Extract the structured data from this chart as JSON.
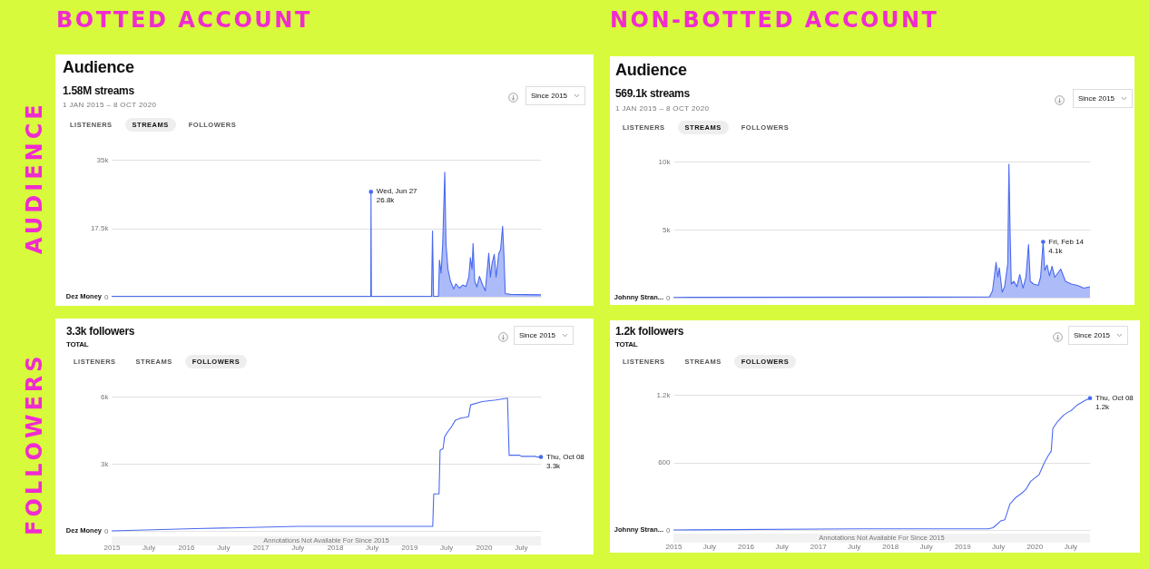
{
  "chart_data": [
    {
      "type": "area",
      "title": "Audience",
      "subtitle": "1.58M streams",
      "annotations": [
        "BOTTED ACCOUNT",
        "AUDIENCE",
        "1 JAN 2015 – 8 OCT 2020",
        "LISTENERS",
        "STREAMS",
        "FOLLOWERS",
        "Since 2015",
        {
          "text": "Wed, Jun 27\n26.8k",
          "x": "2018-06-27",
          "y": 26800
        }
      ],
      "xlim": [
        "2015-01-01",
        "2020-10-08"
      ],
      "ylim": [
        0,
        35000
      ],
      "yticks": [
        {
          "value": 0,
          "label": "0"
        },
        {
          "value": 17500,
          "label": "17.5k"
        },
        {
          "value": 35000,
          "label": "35k"
        }
      ],
      "tick_labels": "y",
      "grid": "y",
      "x": [
        "2015-01-01",
        "2018-05-15",
        "2018-06-26",
        "2018-06-27",
        "2018-06-29",
        "2019-04-20",
        "2019-04-25",
        "2019-04-30",
        "2019-05-24",
        "2019-05-29",
        "2019-06-06",
        "2019-06-14",
        "2019-06-24",
        "2019-06-30",
        "2019-07-10",
        "2019-07-22",
        "2019-08-07",
        "2019-08-18",
        "2019-09-04",
        "2019-09-20",
        "2019-10-06",
        "2019-10-20",
        "2019-10-28",
        "2019-11-05",
        "2019-11-10",
        "2019-11-18",
        "2019-11-29",
        "2019-12-11",
        "2019-12-27",
        "2020-01-09",
        "2020-01-26",
        "2020-02-03",
        "2020-02-11",
        "2020-02-22",
        "2020-03-02",
        "2020-03-15",
        "2020-03-24",
        "2020-04-03",
        "2020-04-10",
        "2020-04-16",
        "2020-05-11",
        "2020-10-08"
      ],
      "series": [
        {
          "name": "Dez Money",
          "color": "#4a6af0",
          "values": [
            100,
            100,
            100,
            26800,
            100,
            100,
            16800,
            100,
            100,
            9400,
            6000,
            13500,
            31800,
            13500,
            7000,
            4000,
            2000,
            3300,
            2200,
            3000,
            2600,
            5000,
            10000,
            7000,
            13600,
            4000,
            2500,
            5200,
            3000,
            1500,
            11100,
            5000,
            8500,
            10800,
            5000,
            11000,
            12000,
            18000,
            10000,
            800,
            600,
            500
          ]
        }
      ]
    },
    {
      "type": "area",
      "title": "Audience",
      "subtitle": "569.1k streams",
      "annotations": [
        "NON-BOTTED ACCOUNT",
        "1 JAN 2015 – 8 OCT 2020",
        "LISTENERS",
        "STREAMS",
        "FOLLOWERS",
        "Since 2015",
        {
          "text": "Fri, Feb 14\n4.1k",
          "x": "2020-02-14",
          "y": 4100
        }
      ],
      "xlim": [
        "2015-01-01",
        "2020-10-08"
      ],
      "ylim": [
        0,
        10000
      ],
      "yticks": [
        {
          "value": 0,
          "label": "0"
        },
        {
          "value": 5000,
          "label": "5k"
        },
        {
          "value": 10000,
          "label": "10k"
        }
      ],
      "tick_labels": "y",
      "grid": "y",
      "x": [
        "2015-01-01",
        "2019-05-18",
        "2019-06-03",
        "2019-06-21",
        "2019-06-30",
        "2019-07-07",
        "2019-07-22",
        "2019-08-03",
        "2019-08-19",
        "2019-08-25",
        "2019-08-31",
        "2019-09-06",
        "2019-09-19",
        "2019-10-04",
        "2019-10-19",
        "2019-11-04",
        "2019-11-19",
        "2019-12-02",
        "2019-12-11",
        "2019-12-28",
        "2020-01-20",
        "2020-02-01",
        "2020-02-14",
        "2020-02-22",
        "2020-03-05",
        "2020-03-17",
        "2020-03-30",
        "2020-04-13",
        "2020-05-13",
        "2020-06-06",
        "2020-07-06",
        "2020-08-06",
        "2020-09-06",
        "2020-10-08"
      ],
      "series": [
        {
          "name": "Johnny Stran...",
          "color": "#4a6af0",
          "values": [
            20,
            50,
            500,
            2600,
            1500,
            2200,
            400,
            800,
            2500,
            9800,
            4700,
            1000,
            1200,
            800,
            1700,
            700,
            1500,
            3900,
            1200,
            1000,
            900,
            1500,
            4100,
            2000,
            2400,
            1600,
            2300,
            1500,
            2100,
            1200,
            1000,
            900,
            700,
            800
          ]
        }
      ]
    },
    {
      "type": "line",
      "title": "3.3k followers",
      "subtitle": "TOTAL",
      "annotations": [
        "FOLLOWERS",
        "LISTENERS",
        "STREAMS",
        "FOLLOWERS",
        "Since 2015",
        "Annotations Not Available For Since 2015",
        {
          "text": "Thu, Oct 08\n3.3k",
          "x": "2020-10-08",
          "y": 3300
        }
      ],
      "xlim": [
        "2015-01-01",
        "2020-10-08"
      ],
      "ylim": [
        0,
        6000
      ],
      "yticks": [
        {
          "value": 0,
          "label": "0"
        },
        {
          "value": 3000,
          "label": "3k"
        },
        {
          "value": 6000,
          "label": "6k"
        }
      ],
      "xticks": [
        {
          "value": "2015-01",
          "label": "2015"
        },
        {
          "value": "2015-07",
          "label": "July"
        },
        {
          "value": "2016-01",
          "label": "2016"
        },
        {
          "value": "2016-07",
          "label": "July"
        },
        {
          "value": "2017-01",
          "label": "2017"
        },
        {
          "value": "2017-07",
          "label": "July"
        },
        {
          "value": "2018-01",
          "label": "2018"
        },
        {
          "value": "2018-07",
          "label": "July"
        },
        {
          "value": "2019-01",
          "label": "2019"
        },
        {
          "value": "2019-07",
          "label": "July"
        },
        {
          "value": "2020-01",
          "label": "2020"
        },
        {
          "value": "2020-07",
          "label": "July"
        }
      ],
      "grid": "y",
      "x": [
        "2015-01-01",
        "2016-02-15",
        "2017-07-03",
        "2018-11-17",
        "2019-04-26",
        "2019-05-01",
        "2019-05-27",
        "2019-06-01",
        "2019-06-16",
        "2019-06-23",
        "2019-07-09",
        "2019-07-27",
        "2019-08-16",
        "2019-09-07",
        "2019-10-19",
        "2019-10-29",
        "2019-12-25",
        "2020-03-01",
        "2020-04-27",
        "2020-05-05",
        "2020-06-26",
        "2020-07-04",
        "2020-09-09",
        "2020-09-18",
        "2020-10-08"
      ],
      "series": [
        {
          "name": "Dez Money",
          "color": "#4a6af0",
          "values": [
            0,
            100,
            200,
            200,
            200,
            1650,
            1650,
            3600,
            3680,
            4200,
            4430,
            4650,
            4950,
            5030,
            5100,
            5630,
            5780,
            5850,
            5930,
            3380,
            3380,
            3330,
            3330,
            3300,
            3300
          ]
        }
      ]
    },
    {
      "type": "line",
      "title": "1.2k followers",
      "subtitle": "TOTAL",
      "annotations": [
        "LISTENERS",
        "STREAMS",
        "FOLLOWERS",
        "Since 2015",
        "Annotations Not Available For Since 2015",
        {
          "text": "Thu, Oct 08\n1.2k",
          "x": "2020-10-08",
          "y": 1170
        }
      ],
      "xlim": [
        "2015-01-01",
        "2020-10-08"
      ],
      "ylim": [
        0,
        1200
      ],
      "yticks": [
        {
          "value": 0,
          "label": "0"
        },
        {
          "value": 600,
          "label": "600"
        },
        {
          "value": 1200,
          "label": "1.2k"
        }
      ],
      "xticks": [
        {
          "value": "2015-01",
          "label": "2015"
        },
        {
          "value": "2015-07",
          "label": "July"
        },
        {
          "value": "2016-01",
          "label": "2016"
        },
        {
          "value": "2016-07",
          "label": "July"
        },
        {
          "value": "2017-01",
          "label": "2017"
        },
        {
          "value": "2017-07",
          "label": "July"
        },
        {
          "value": "2018-01",
          "label": "2018"
        },
        {
          "value": "2018-07",
          "label": "July"
        },
        {
          "value": "2019-01",
          "label": "2019"
        },
        {
          "value": "2019-07",
          "label": "July"
        },
        {
          "value": "2020-01",
          "label": "2020"
        },
        {
          "value": "2020-07",
          "label": "July"
        }
      ],
      "grid": "y",
      "x": [
        "2015-01-01",
        "2017-07-23",
        "2019-05-13",
        "2019-06-06",
        "2019-07-14",
        "2019-08-04",
        "2019-08-30",
        "2019-09-30",
        "2019-10-24",
        "2019-11-19",
        "2019-12-12",
        "2020-01-24",
        "2020-02-21",
        "2020-03-11",
        "2020-03-26",
        "2020-04-03",
        "2020-04-26",
        "2020-05-28",
        "2020-06-23",
        "2020-07-05",
        "2020-08-05",
        "2020-09-13",
        "2020-10-08"
      ],
      "series": [
        {
          "name": "Johnny Stran...",
          "color": "#4a6af0",
          "values": [
            0,
            10,
            10,
            20,
            80,
            90,
            230,
            290,
            320,
            360,
            430,
            490,
            600,
            660,
            700,
            900,
            960,
            1020,
            1050,
            1060,
            1110,
            1150,
            1170
          ]
        }
      ]
    }
  ]
}
